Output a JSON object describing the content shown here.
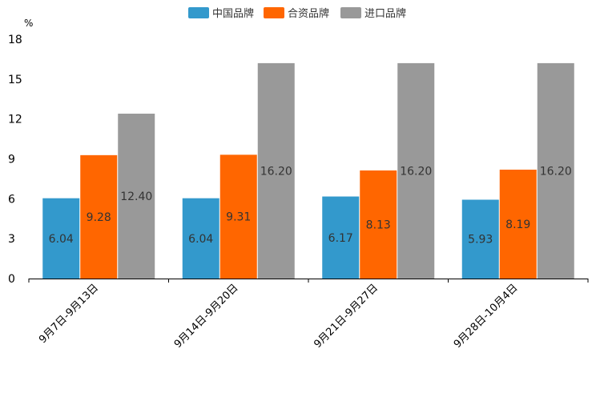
{
  "chart_data": {
    "type": "bar",
    "ylabel": "%",
    "ylim": [
      0,
      18
    ],
    "yticks": [
      "0",
      "3",
      "6",
      "9",
      "12",
      "15",
      "18"
    ],
    "categories": [
      "9月7日-9月13日",
      "9月14日-9月20日",
      "9月21日-9月27日",
      "9月28日-10月4日"
    ],
    "series": [
      {
        "name": "中国品牌",
        "color": "#3399cc",
        "values": [
          6.04,
          6.04,
          6.17,
          5.93
        ],
        "labels": [
          "6.04",
          "6.04",
          "6.17",
          "5.93"
        ]
      },
      {
        "name": "合资品牌",
        "color": "#ff6600",
        "values": [
          9.28,
          9.31,
          8.13,
          8.19
        ],
        "labels": [
          "9.28",
          "9.31",
          "8.13",
          "8.19"
        ]
      },
      {
        "name": "进口品牌",
        "color": "#999999",
        "values": [
          12.4,
          16.2,
          16.2,
          16.2
        ],
        "labels": [
          "12.40",
          "16.20",
          "16.20",
          "16.20"
        ]
      }
    ],
    "legend_position": "top-center",
    "grid": false
  }
}
